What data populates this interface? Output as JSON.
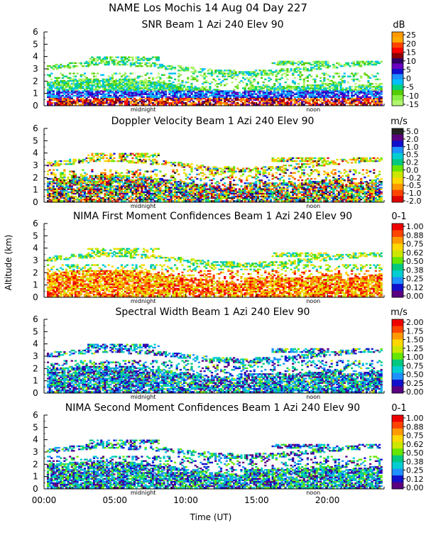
{
  "chart_data": {
    "type": "heatmap",
    "figure_title": "NAME Los Mochis   14 Aug 04 Day 227",
    "xlabel": "Time (UT)",
    "ylabel": "Altitude (km)",
    "x_ticks": [
      "00:00",
      "05:00",
      "10:00",
      "15:00",
      "20:00"
    ],
    "x_range_hours": [
      0,
      24
    ],
    "markers": [
      "midnight",
      "noon"
    ],
    "panels": [
      {
        "title": "SNR Beam 1 Azi 240 Elev 90",
        "unit": "dB",
        "kind": "snr",
        "y_ticks": [
          "0",
          "1",
          "2",
          "3",
          "4",
          "5",
          "6"
        ],
        "ylim": [
          0,
          6
        ],
        "colorbar_labels": [
          "25",
          "20",
          "15",
          "10",
          "5",
          "0",
          "-5",
          "-10",
          "-15"
        ],
        "colorbar_colors": [
          "#FF9900",
          "#FFAA00",
          "#FF4400",
          "#FF0000",
          "#8B0000",
          "#2F0066",
          "#6A00C0",
          "#1010CC",
          "#1E90FF",
          "#00BFFF",
          "#00D27F",
          "#55CC00",
          "#88EE44",
          "#B2F56E"
        ]
      },
      {
        "title": "Doppler Velocity Beam 1 Azi 240 Elev 90",
        "unit": "m/s",
        "kind": "doppler",
        "y_ticks": [
          "0",
          "1",
          "2",
          "3",
          "4",
          "5",
          "6"
        ],
        "ylim": [
          0,
          6
        ],
        "colorbar_labels": [
          "5.0",
          "2.0",
          "1.0",
          "0.5",
          "0.2",
          "0.0",
          "-0.2",
          "-0.5",
          "-1.0",
          "-2.0"
        ],
        "colorbar_colors": [
          "#222222",
          "#5A0080",
          "#1010CC",
          "#1E90FF",
          "#00CED1",
          "#00C87F",
          "#66E600",
          "#CCE600",
          "#FFD700",
          "#FF9900",
          "#FF4400",
          "#DD0000"
        ]
      },
      {
        "title": "NIMA First Moment Confidences Beam 1 Azi 240 Elev 90",
        "unit": "0-1",
        "kind": "conf1",
        "y_ticks": [
          "0",
          "1",
          "2",
          "3",
          "4",
          "5",
          "6"
        ],
        "ylim": [
          0,
          6
        ],
        "colorbar_labels": [
          "1.00",
          "0.88",
          "0.75",
          "0.62",
          "0.50",
          "0.38",
          "0.25",
          "0.12",
          "0.00"
        ],
        "colorbar_colors": [
          "#EE0000",
          "#FF4400",
          "#FF9900",
          "#FFD700",
          "#CCE600",
          "#66E600",
          "#00C87F",
          "#00CED1",
          "#1E90FF",
          "#1010CC",
          "#5A0080"
        ]
      },
      {
        "title": "Spectral Width Beam 1 Azi 240 Elev 90",
        "unit": "m/s",
        "kind": "width",
        "y_ticks": [
          "0",
          "1",
          "2",
          "3",
          "4",
          "5",
          "6"
        ],
        "ylim": [
          0,
          6
        ],
        "colorbar_labels": [
          "2.00",
          "1.75",
          "1.50",
          "1.25",
          "1.00",
          "0.75",
          "0.50",
          "0.25",
          "0.00"
        ],
        "colorbar_colors": [
          "#EE0000",
          "#FF4400",
          "#FF9900",
          "#FFD700",
          "#CCE600",
          "#66E600",
          "#00C87F",
          "#00CED1",
          "#1E90FF",
          "#1010CC",
          "#5A0080"
        ]
      },
      {
        "title": "NIMA Second Moment Confidences Beam 1 Azi 240 Elev 90",
        "unit": "0-1",
        "kind": "conf2",
        "y_ticks": [
          "0",
          "1",
          "2",
          "3",
          "4",
          "5",
          "6"
        ],
        "ylim": [
          0,
          6
        ],
        "colorbar_labels": [
          "1.00",
          "0.88",
          "0.75",
          "0.62",
          "0.50",
          "0.38",
          "0.25",
          "0.12",
          "0.00"
        ],
        "colorbar_colors": [
          "#EE0000",
          "#FF4400",
          "#FF9900",
          "#FFD700",
          "#CCE600",
          "#66E600",
          "#00C87F",
          "#00CED1",
          "#1E90FF",
          "#1010CC",
          "#5A0080"
        ]
      }
    ]
  }
}
